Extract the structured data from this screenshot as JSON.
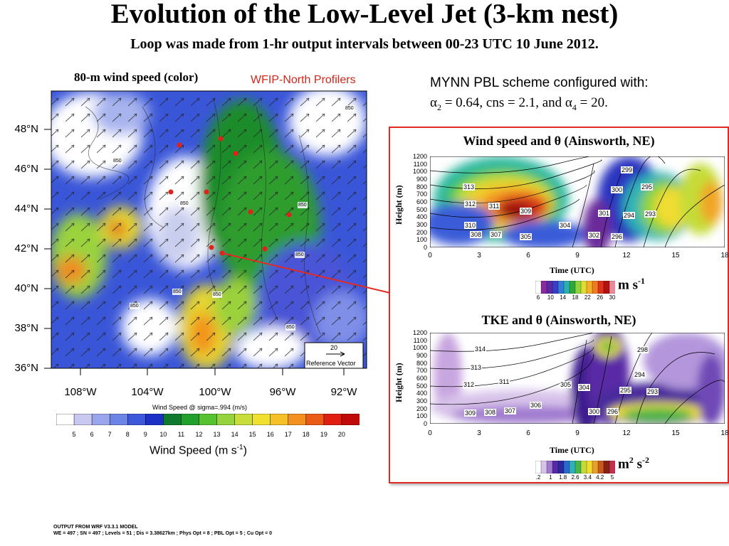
{
  "header": {
    "title": "Evolution of the Low-Level Jet (3-km nest)",
    "subtitle": "Loop was made from 1-hr output intervals between 00-23 UTC 10 June 2012."
  },
  "map": {
    "title": "80-m wind speed (color)",
    "profilers_label": "WFIP-North Profilers",
    "lat_labels": [
      "48°N",
      "46°N",
      "44°N",
      "42°N",
      "40°N",
      "38°N",
      "36°N"
    ],
    "lon_labels": [
      "108°W",
      "104°W",
      "100°W",
      "96°W",
      "92°W"
    ],
    "reference_vector": {
      "value": "20",
      "label": "Reference Vector"
    },
    "colorbar_title": "Wind Speed @ sigma=.994 (m/s)",
    "colorbar_ticks": [
      "5",
      "6",
      "7",
      "8",
      "9",
      "10",
      "11",
      "12",
      "13",
      "14",
      "15",
      "16",
      "17",
      "18",
      "19",
      "20"
    ],
    "colorbar_colors": [
      "#ffffff",
      "#c8c8f0",
      "#9aa6ec",
      "#6c84e6",
      "#3d58db",
      "#1c30c8",
      "#0f7a2e",
      "#22a02c",
      "#56c232",
      "#96d33c",
      "#c8dc3a",
      "#f0e030",
      "#f5c028",
      "#f39020",
      "#ec5a18",
      "#e01e12",
      "#c00a0a"
    ],
    "units": "Wind Speed (m s-1)",
    "units_main": "Wind Speed (m s",
    "units_sup": "-1",
    "units_close": ")",
    "contour_labels": [
      "850",
      "850",
      "850",
      "850",
      "850",
      "850",
      "850",
      "850",
      "850"
    ]
  },
  "mynn": {
    "line1": "MYNN PBL scheme configured with:",
    "line2": "α2 = 0.64, cns = 2.1, and α4 = 20.",
    "a": "α",
    "sub2": "2",
    "mid": " = 0.64, cns = 2.1, and ",
    "a2": "α",
    "sub4": "4",
    "end": " = 20."
  },
  "panel_wind": {
    "title": "Wind speed and θ (Ainsworth, NE)",
    "ylabel": "Height (m)",
    "xlabel": "Time (UTC)",
    "yticks": [
      "1200",
      "1100",
      "1000",
      "900",
      "800",
      "700",
      "600",
      "500",
      "400",
      "300",
      "200",
      "100",
      "0"
    ],
    "xticks": [
      "0",
      "3",
      "6",
      "9",
      "12",
      "15",
      "18"
    ],
    "colorbar_ticks": [
      "6",
      "10",
      "14",
      "18",
      "22",
      "26",
      "30"
    ],
    "units_main": "m s",
    "units_sup": "-1",
    "theta_labels": [
      "313",
      "312",
      "311",
      "309",
      "310",
      "308",
      "307",
      "305",
      "304",
      "302",
      "301",
      "300",
      "299",
      "295",
      "294",
      "293",
      "296"
    ]
  },
  "panel_tke": {
    "title": "TKE and θ (Ainsworth, NE)",
    "ylabel": "Height (m)",
    "xlabel": "Time (UTC)",
    "yticks": [
      "1200",
      "1100",
      "1000",
      "900",
      "800",
      "700",
      "600",
      "500",
      "400",
      "300",
      "200",
      "100",
      "0"
    ],
    "xticks": [
      "0",
      "3",
      "6",
      "9",
      "12",
      "15",
      "18"
    ],
    "colorbar_ticks": [
      ".2",
      "1",
      "1.8",
      "2.6",
      "3.4",
      "4.2",
      "5"
    ],
    "units_main": "m",
    "units_sup1": "2",
    "units_mid": " s",
    "units_sup2": "-2",
    "theta_labels": [
      "314",
      "313",
      "312",
      "311",
      "309",
      "308",
      "307",
      "306",
      "305",
      "304",
      "300",
      "296",
      "295",
      "298",
      "294",
      "293"
    ]
  },
  "footer": {
    "line1": "OUTPUT FROM WRF V3.3.1 MODEL",
    "line2": "WE = 497 ; SN = 497 ; Levels = 51 ; Dis = 3.38627km ; Phys Opt = 8 ; PBL Opt = 5 ; Cu Opt = 0"
  },
  "chart_data": [
    {
      "type": "heatmap",
      "title": "80-m wind speed (color)",
      "xlabel": "",
      "ylabel": "",
      "x_ticks": [
        "108°W",
        "104°W",
        "100°W",
        "96°W",
        "92°W"
      ],
      "y_ticks": [
        "48°N",
        "46°N",
        "44°N",
        "42°N",
        "40°N",
        "38°N",
        "36°N"
      ],
      "colorbar": {
        "label": "Wind Speed @ sigma=.994 (m/s)",
        "range": [
          5,
          20
        ]
      }
    },
    {
      "type": "heatmap",
      "title": "Wind speed and θ (Ainsworth, NE)",
      "xlabel": "Time (UTC)",
      "ylabel": "Height (m)",
      "xlim": [
        0,
        18
      ],
      "ylim": [
        0,
        1200
      ],
      "colorbar": {
        "units": "m s-1",
        "ticks": [
          6,
          10,
          14,
          18,
          22,
          26,
          30
        ]
      }
    },
    {
      "type": "heatmap",
      "title": "TKE and θ (Ainsworth, NE)",
      "xlabel": "Time (UTC)",
      "ylabel": "Height (m)",
      "xlim": [
        0,
        18
      ],
      "ylim": [
        0,
        1200
      ],
      "colorbar": {
        "units": "m2 s-2",
        "ticks": [
          0.2,
          1,
          1.8,
          2.6,
          3.4,
          4.2,
          5
        ]
      }
    }
  ]
}
